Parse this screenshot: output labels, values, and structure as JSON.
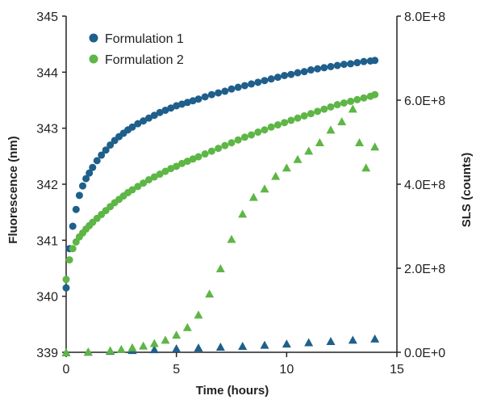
{
  "colors": {
    "formulation1": "#1f5f8b",
    "formulation2": "#5db645",
    "axis": "#222222"
  },
  "chart_data": {
    "type": "scatter",
    "xlabel": "Time (hours)",
    "ylabel_left": "Fluorescence (nm)",
    "ylabel_right": "SLS (counts)",
    "xlim": [
      0,
      15
    ],
    "ylim_left": [
      339,
      345
    ],
    "ylim_right": [
      0,
      800000000
    ],
    "x_ticks": [
      0,
      5,
      10,
      15
    ],
    "x_tick_labels": [
      "0",
      "5",
      "10",
      "15"
    ],
    "y_left_ticks": [
      339,
      340,
      341,
      342,
      343,
      344,
      345
    ],
    "y_left_tick_labels": [
      "339",
      "340",
      "341",
      "342",
      "343",
      "344",
      "345"
    ],
    "y_right_ticks": [
      0,
      200000000,
      400000000,
      600000000,
      800000000
    ],
    "y_right_tick_labels": [
      "0.0E+0",
      "2.0E+8",
      "4.0E+8",
      "6.0E+8",
      "8.0E+8"
    ],
    "grid": false,
    "legend_position": "top-left",
    "legend": [
      {
        "label": "Formulation 1",
        "color": "#1f5f8b"
      },
      {
        "label": "Formulation 2",
        "color": "#5db645"
      }
    ],
    "series": [
      {
        "legend_ref": "Formulation 1",
        "marker": "circle",
        "axis": "left",
        "color": "#1f5f8b",
        "x": [
          0,
          0.15,
          0.3,
          0.45,
          0.6,
          0.75,
          0.9,
          1.05,
          1.2,
          1.4,
          1.6,
          1.8,
          2.0,
          2.2,
          2.4,
          2.6,
          2.8,
          3.0,
          3.25,
          3.5,
          3.75,
          4.0,
          4.25,
          4.5,
          4.75,
          5.0,
          5.25,
          5.5,
          5.75,
          6.0,
          6.3,
          6.6,
          6.9,
          7.2,
          7.5,
          7.8,
          8.1,
          8.4,
          8.7,
          9.0,
          9.3,
          9.6,
          9.9,
          10.2,
          10.5,
          10.8,
          11.1,
          11.4,
          11.7,
          12.0,
          12.3,
          12.6,
          12.9,
          13.2,
          13.5,
          13.8,
          14.0
        ],
        "y": [
          340.15,
          340.85,
          341.25,
          341.55,
          341.8,
          341.97,
          342.1,
          342.2,
          342.3,
          342.42,
          342.52,
          342.61,
          342.7,
          342.78,
          342.85,
          342.91,
          342.97,
          343.02,
          343.08,
          343.13,
          343.18,
          343.23,
          343.28,
          343.32,
          343.36,
          343.4,
          343.43,
          343.46,
          343.49,
          343.52,
          343.56,
          343.6,
          343.63,
          343.66,
          343.7,
          343.73,
          343.76,
          343.79,
          343.82,
          343.85,
          343.88,
          343.91,
          343.94,
          343.96,
          343.99,
          344.01,
          344.04,
          344.06,
          344.08,
          344.1,
          344.12,
          344.14,
          344.15,
          344.17,
          344.19,
          344.2,
          344.21
        ]
      },
      {
        "legend_ref": "Formulation 2",
        "marker": "circle",
        "axis": "left",
        "color": "#5db645",
        "x": [
          0,
          0.15,
          0.3,
          0.45,
          0.6,
          0.75,
          0.9,
          1.05,
          1.2,
          1.4,
          1.6,
          1.8,
          2.0,
          2.2,
          2.4,
          2.6,
          2.8,
          3.0,
          3.25,
          3.5,
          3.75,
          4.0,
          4.25,
          4.5,
          4.75,
          5.0,
          5.25,
          5.5,
          5.75,
          6.0,
          6.3,
          6.6,
          6.9,
          7.2,
          7.5,
          7.8,
          8.1,
          8.4,
          8.7,
          9.0,
          9.3,
          9.6,
          9.9,
          10.2,
          10.5,
          10.8,
          11.1,
          11.4,
          11.7,
          12.0,
          12.3,
          12.6,
          12.9,
          13.2,
          13.5,
          13.8,
          14.0
        ],
        "y": [
          340.3,
          340.65,
          340.85,
          340.97,
          341.06,
          341.13,
          341.2,
          341.26,
          341.32,
          341.39,
          341.46,
          341.53,
          341.6,
          341.67,
          341.73,
          341.79,
          341.85,
          341.9,
          341.96,
          342.02,
          342.08,
          342.13,
          342.18,
          342.23,
          342.28,
          342.32,
          342.37,
          342.41,
          342.45,
          342.49,
          342.54,
          342.59,
          342.64,
          342.69,
          342.74,
          342.79,
          342.84,
          342.88,
          342.93,
          342.97,
          343.02,
          343.06,
          343.1,
          343.14,
          343.18,
          343.22,
          343.26,
          343.3,
          343.34,
          343.38,
          343.42,
          343.45,
          343.48,
          343.51,
          343.54,
          343.57,
          343.6
        ]
      },
      {
        "legend_ref": "Formulation 1",
        "marker": "triangle",
        "axis": "right",
        "color": "#1f5f8b",
        "x": [
          0,
          1,
          2,
          3,
          4,
          5,
          6,
          7,
          8,
          9,
          10,
          11,
          12,
          13,
          14
        ],
        "y": [
          0,
          1500000,
          3500000,
          5500000,
          7500000,
          9500000,
          11500000,
          13500000,
          15500000,
          18000000,
          21000000,
          24000000,
          27000000,
          30000000,
          33000000
        ]
      },
      {
        "legend_ref": "Formulation 2",
        "marker": "triangle",
        "axis": "right",
        "color": "#5db645",
        "x": [
          0,
          1,
          2,
          2.5,
          3,
          3.5,
          4,
          4.5,
          5,
          5.5,
          6,
          6.5,
          7,
          7.5,
          8,
          8.5,
          9,
          9.5,
          10,
          10.5,
          11,
          11.5,
          12,
          12.5,
          13,
          13.3,
          13.6,
          14
        ],
        "y": [
          0,
          2000000,
          5000000,
          8000000,
          12000000,
          16000000,
          22000000,
          30000000,
          42000000,
          60000000,
          90000000,
          140000000,
          200000000,
          270000000,
          330000000,
          370000000,
          390000000,
          420000000,
          440000000,
          460000000,
          480000000,
          500000000,
          530000000,
          550000000,
          580000000,
          500000000,
          440000000,
          490000000
        ]
      }
    ]
  }
}
